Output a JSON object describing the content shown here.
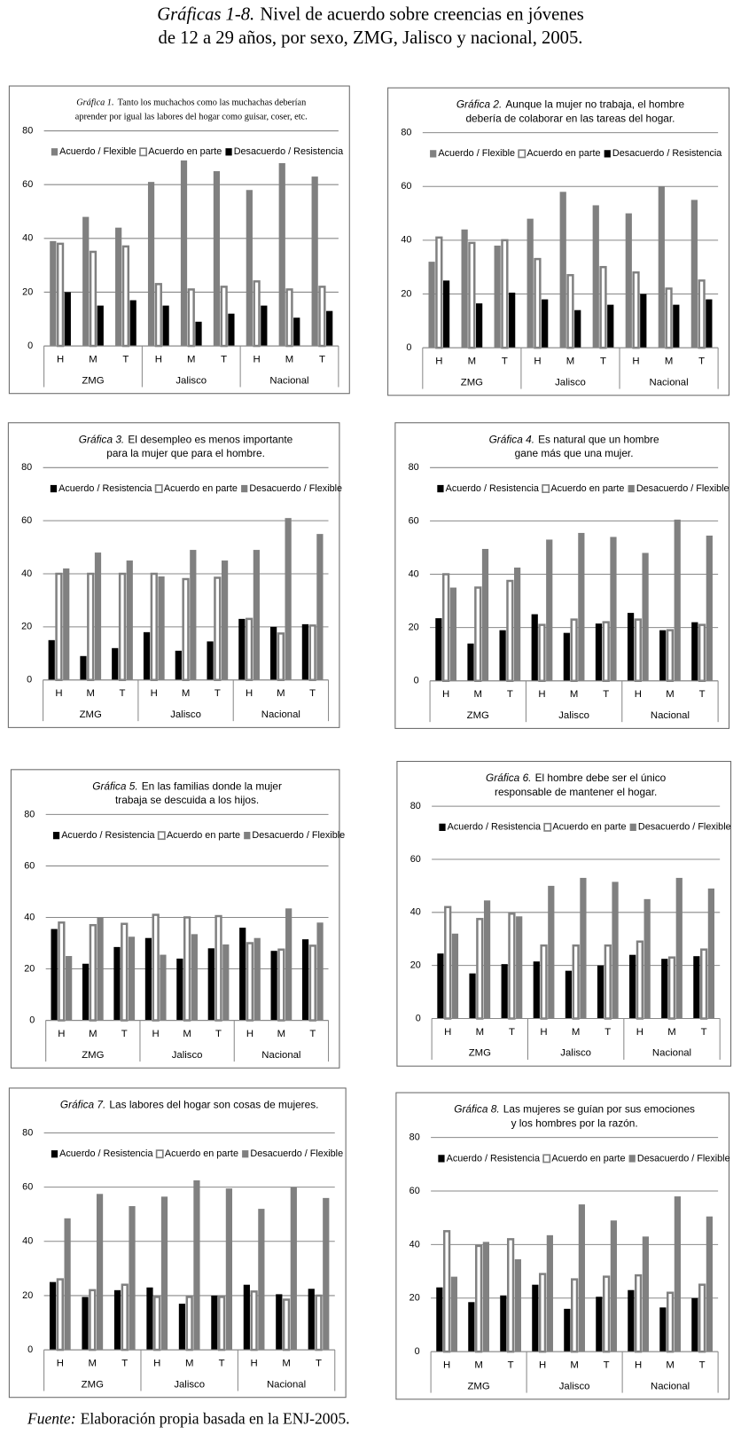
{
  "header": {
    "title_label": "Gráficas 1-8.",
    "title_lines": [
      "Nivel de acuerdo sobre creencias en jóvenes",
      "de 12 a 29 años, por sexo, ZMG, Jalisco y nacional, 2005."
    ]
  },
  "chart_data": [
    {
      "type": "bar",
      "title_label": "Gráfica 1.",
      "title_lines": [
        "Tanto los muchachos como las muchachas deberían",
        "aprender por igual las labores del hogar como guisar, coser, etc."
      ],
      "categories": [
        "H",
        "M",
        "T",
        "H",
        "M",
        "T",
        "H",
        "M",
        "T"
      ],
      "groups": [
        "ZMG",
        "Jalisco",
        "Nacional"
      ],
      "series": [
        {
          "name": "Acuerdo / Flexible",
          "color": "#808080",
          "values": [
            39,
            48,
            44,
            61,
            69,
            65,
            58,
            68,
            63
          ]
        },
        {
          "name": "Acuerdo en parte",
          "color": "#808080",
          "style": "outline",
          "values": [
            38,
            35,
            37,
            23,
            21,
            22,
            24,
            21,
            22
          ]
        },
        {
          "name": "Desacuerdo / Resistencia",
          "color": "#000000",
          "values": [
            20,
            15,
            17,
            15,
            9,
            12,
            15,
            10.5,
            13
          ]
        }
      ],
      "ylim": [
        0,
        80
      ],
      "yticks": [
        0,
        20,
        40,
        60,
        80
      ],
      "grid": true
    },
    {
      "type": "bar",
      "title_label": "Gráfica 2.",
      "title_lines": [
        "Aunque la mujer no trabaja, el hombre",
        "debería de colaborar en las tareas del hogar."
      ],
      "categories": [
        "H",
        "M",
        "T",
        "H",
        "M",
        "T",
        "H",
        "M",
        "T"
      ],
      "groups": [
        "ZMG",
        "Jalisco",
        "Nacional"
      ],
      "series": [
        {
          "name": "Acuerdo / Flexible",
          "color": "#808080",
          "values": [
            32,
            44,
            38,
            48,
            58,
            53,
            50,
            60,
            55
          ]
        },
        {
          "name": "Acuerdo en parte",
          "color": "#808080",
          "style": "outline",
          "values": [
            41,
            39,
            40,
            33,
            27,
            30,
            28,
            22,
            25
          ]
        },
        {
          "name": "Desacuerdo / Resistencia",
          "color": "#000000",
          "values": [
            25,
            16.5,
            20.5,
            18,
            14,
            16,
            20,
            16,
            18
          ]
        }
      ],
      "ylim": [
        0,
        80
      ],
      "yticks": [
        0,
        20,
        40,
        60,
        80
      ],
      "grid": true
    },
    {
      "type": "bar",
      "title_label": "Gráfica 3.",
      "title_lines": [
        "El desempleo es menos importante",
        "para la mujer que para el hombre."
      ],
      "categories": [
        "H",
        "M",
        "T",
        "H",
        "M",
        "T",
        "H",
        "M",
        "T"
      ],
      "groups": [
        "ZMG",
        "Jalisco",
        "Nacional"
      ],
      "series": [
        {
          "name": "Acuerdo / Resistencia",
          "color": "#000000",
          "values": [
            15,
            9,
            12,
            18,
            11,
            14.5,
            23,
            20,
            21
          ]
        },
        {
          "name": "Acuerdo en parte",
          "color": "#808080",
          "style": "outline",
          "values": [
            40,
            40,
            40,
            40,
            38,
            38.5,
            23,
            17.5,
            20.5
          ]
        },
        {
          "name": "Desacuerdo / Flexible",
          "color": "#808080",
          "values": [
            42,
            48,
            45,
            39,
            49,
            45,
            49,
            61,
            55
          ]
        }
      ],
      "ylim": [
        0,
        80
      ],
      "yticks": [
        0,
        20,
        40,
        60,
        80
      ],
      "grid": true
    },
    {
      "type": "bar",
      "title_label": "Gráfica 4.",
      "title_lines": [
        "Es natural que un hombre",
        "gane más que una mujer."
      ],
      "categories": [
        "H",
        "M",
        "T",
        "H",
        "M",
        "T",
        "H",
        "M",
        "T"
      ],
      "groups": [
        "ZMG",
        "Jalisco",
        "Nacional"
      ],
      "series": [
        {
          "name": "Acuerdo / Resistencia",
          "color": "#000000",
          "values": [
            23.5,
            14,
            19,
            25,
            18,
            21.5,
            25.5,
            19,
            22
          ]
        },
        {
          "name": "Acuerdo en parte",
          "color": "#808080",
          "style": "outline",
          "values": [
            40,
            35,
            37.5,
            21,
            23,
            22,
            23,
            19,
            21
          ]
        },
        {
          "name": "Desacuerdo / Flexible",
          "color": "#808080",
          "values": [
            35,
            49.5,
            42.5,
            53,
            55.5,
            54,
            48,
            60.5,
            54.5
          ]
        }
      ],
      "ylim": [
        0,
        80
      ],
      "yticks": [
        0,
        20,
        40,
        60,
        80
      ],
      "grid": true
    },
    {
      "type": "bar",
      "title_label": "Gráfica 5.",
      "title_lines": [
        "En las familias donde la mujer",
        "trabaja se descuida a los hijos."
      ],
      "categories": [
        "H",
        "M",
        "T",
        "H",
        "M",
        "T",
        "H",
        "M",
        "T"
      ],
      "groups": [
        "ZMG",
        "Jalisco",
        "Nacional"
      ],
      "series": [
        {
          "name": "Acuerdo / Resistencia",
          "color": "#000000",
          "values": [
            35.5,
            22,
            28.5,
            32,
            24,
            28,
            36,
            27,
            31.5
          ]
        },
        {
          "name": "Acuerdo en parte",
          "color": "#808080",
          "style": "outline",
          "values": [
            38,
            37,
            37.5,
            41,
            40,
            40.5,
            30,
            27.5,
            29
          ]
        },
        {
          "name": "Desacuerdo / Flexible",
          "color": "#808080",
          "values": [
            25,
            40,
            32.5,
            25.5,
            33.5,
            29.5,
            32,
            43.5,
            38
          ]
        }
      ],
      "ylim": [
        0,
        80
      ],
      "yticks": [
        0,
        20,
        40,
        60,
        80
      ],
      "grid": true
    },
    {
      "type": "bar",
      "title_label": "Gráfica 6.",
      "title_lines": [
        "El hombre debe ser el único",
        "responsable de mantener el hogar."
      ],
      "categories": [
        "H",
        "M",
        "T",
        "H",
        "M",
        "T",
        "H",
        "M",
        "T"
      ],
      "groups": [
        "ZMG",
        "Jalisco",
        "Nacional"
      ],
      "series": [
        {
          "name": "Acuerdo / Resistencia",
          "color": "#000000",
          "values": [
            24.5,
            17,
            20.5,
            21.5,
            18,
            20,
            24,
            22.5,
            23.5
          ]
        },
        {
          "name": "Acuerdo en parte",
          "color": "#808080",
          "style": "outline",
          "values": [
            42,
            37.5,
            39.5,
            27.5,
            27.5,
            27.5,
            29,
            23,
            26
          ]
        },
        {
          "name": "Desacuerdo / Flexible",
          "color": "#808080",
          "values": [
            32,
            44.5,
            38.5,
            50,
            53,
            51.5,
            45,
            53,
            49
          ]
        }
      ],
      "ylim": [
        0,
        80
      ],
      "yticks": [
        0,
        20,
        40,
        60,
        80
      ],
      "grid": true
    },
    {
      "type": "bar",
      "title_label": "Gráfica 7.",
      "title_lines": [
        "Las labores del hogar son cosas de mujeres."
      ],
      "categories": [
        "H",
        "M",
        "T",
        "H",
        "M",
        "T",
        "H",
        "M",
        "T"
      ],
      "groups": [
        "ZMG",
        "Jalisco",
        "Nacional"
      ],
      "series": [
        {
          "name": "Acuerdo / Resistencia",
          "color": "#000000",
          "values": [
            25,
            19.5,
            22,
            23,
            17,
            20,
            24,
            20.5,
            22.5
          ]
        },
        {
          "name": "Acuerdo en parte",
          "color": "#808080",
          "style": "outline",
          "values": [
            26,
            22,
            24,
            19.5,
            19.5,
            19.5,
            21.5,
            18.5,
            20
          ]
        },
        {
          "name": "Desacuerdo / Flexible",
          "color": "#808080",
          "values": [
            48.5,
            57.5,
            53,
            56.5,
            62.5,
            59.5,
            52,
            60,
            56
          ]
        }
      ],
      "ylim": [
        0,
        80
      ],
      "yticks": [
        0,
        20,
        40,
        60,
        80
      ],
      "grid": true
    },
    {
      "type": "bar",
      "title_label": "Gráfica 8.",
      "title_lines": [
        "Las mujeres se guían por sus emociones",
        "y los hombres por la razón."
      ],
      "categories": [
        "H",
        "M",
        "T",
        "H",
        "M",
        "T",
        "H",
        "M",
        "T"
      ],
      "groups": [
        "ZMG",
        "Jalisco",
        "Nacional"
      ],
      "series": [
        {
          "name": "Acuerdo / Resistencia",
          "color": "#000000",
          "values": [
            24,
            18.5,
            21,
            25,
            16,
            20.5,
            23,
            16.5,
            20
          ]
        },
        {
          "name": "Acuerdo en parte",
          "color": "#808080",
          "style": "outline",
          "values": [
            45,
            39.5,
            42,
            29,
            27,
            28,
            28.5,
            22,
            25
          ]
        },
        {
          "name": "Desacuerdo / Flexible",
          "color": "#808080",
          "values": [
            28,
            41,
            34.5,
            43.5,
            55,
            49,
            43,
            58,
            50.5
          ]
        }
      ],
      "ylim": [
        0,
        80
      ],
      "yticks": [
        0,
        20,
        40,
        60,
        80
      ],
      "grid": true
    }
  ],
  "footer": {
    "label": "Fuente:",
    "text": "Elaboración propia basada en la ENJ-2005."
  }
}
